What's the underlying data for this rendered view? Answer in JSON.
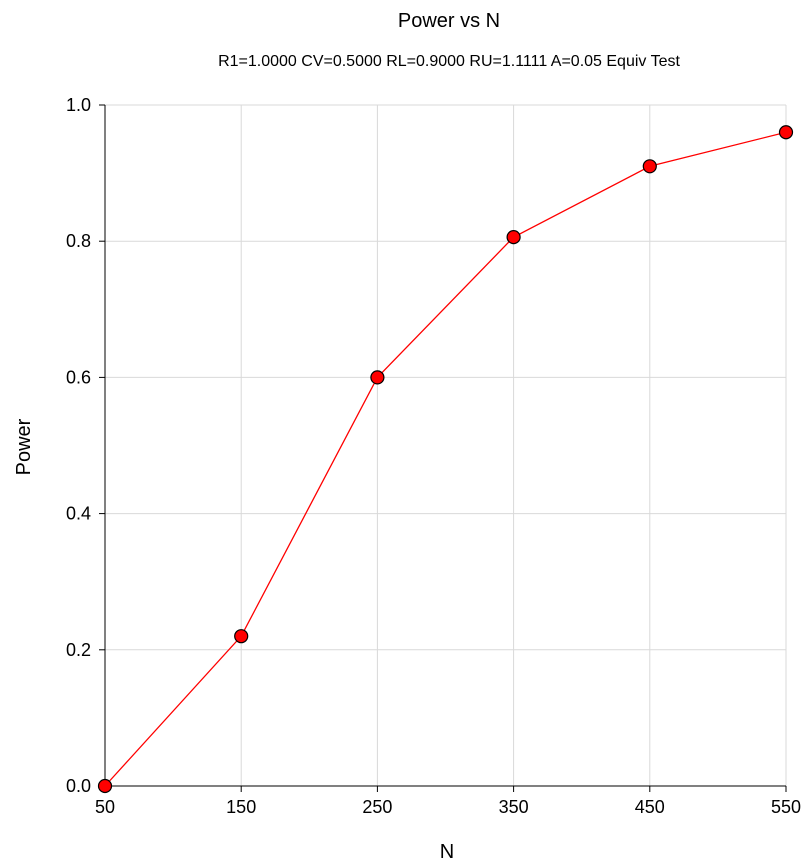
{
  "chart_data": {
    "type": "line",
    "title": "Power vs N",
    "subtitle": "R1=1.0000 CV=0.5000 RL=0.9000 RU=1.1111 A=0.05 Equiv Test",
    "xlabel": "N",
    "ylabel": "Power",
    "x": [
      50,
      150,
      250,
      350,
      450,
      550
    ],
    "series": [
      {
        "values": [
          0.0,
          0.22,
          0.6,
          0.806,
          0.91,
          0.96
        ]
      }
    ],
    "xticks": [
      50,
      150,
      250,
      350,
      450,
      550
    ],
    "xtick_labels": [
      "50",
      "150",
      "250",
      "350",
      "450",
      "550"
    ],
    "yticks": [
      0.0,
      0.2,
      0.4,
      0.6,
      0.8,
      1.0
    ],
    "ytick_labels": [
      "0.0",
      "0.2",
      "0.4",
      "0.6",
      "0.8",
      "1.0"
    ],
    "xlim": [
      50,
      550
    ],
    "ylim": [
      0,
      1.0
    ],
    "grid": true,
    "line_color": "#ff0000",
    "marker_color": "#ff0000"
  }
}
